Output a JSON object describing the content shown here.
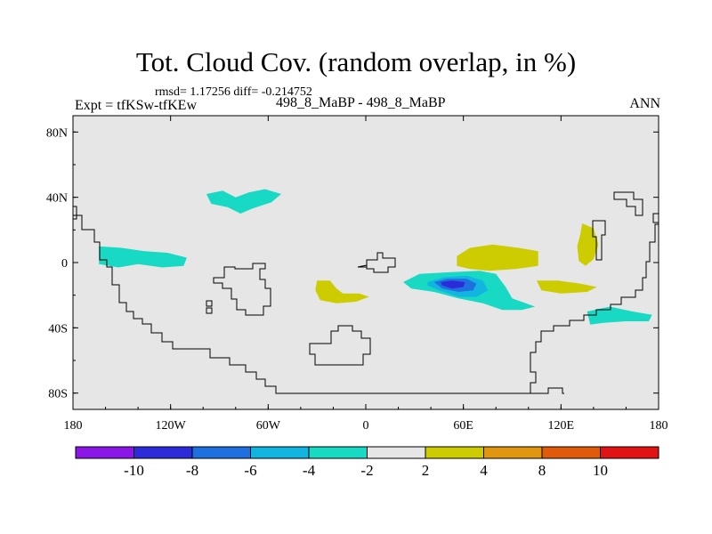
{
  "figure": {
    "title": "Tot. Cloud Cov. (random overlap, in %)",
    "stats": "rmsd= 1.17256 diff= -0.214752",
    "left_label": "Expt = tfKSw-tfKEw",
    "center_label": "498_8_MaBP - 498_8_MaBP",
    "right_label": "ANN"
  },
  "chart_data": {
    "type": "heatmap",
    "title": "Tot. Cloud Cov. (random overlap, in %)",
    "projection": "cylindrical equidistant",
    "x_range": [
      -180,
      180
    ],
    "y_range": [
      -90,
      90
    ],
    "x_ticks": [
      {
        "value": -180,
        "label": "180"
      },
      {
        "value": -120,
        "label": "120W"
      },
      {
        "value": -60,
        "label": "60W"
      },
      {
        "value": 0,
        "label": "0"
      },
      {
        "value": 60,
        "label": "60E"
      },
      {
        "value": 120,
        "label": "120E"
      },
      {
        "value": 180,
        "label": "180"
      }
    ],
    "y_ticks": [
      {
        "value": 80,
        "label": "80N"
      },
      {
        "value": 40,
        "label": "40N"
      },
      {
        "value": 0,
        "label": "0"
      },
      {
        "value": -40,
        "label": "40S"
      },
      {
        "value": -80,
        "label": "80S"
      }
    ],
    "background_color": "#e6e6e6",
    "colorbar": {
      "levels": [
        -10,
        -8,
        -6,
        -4,
        -2,
        2,
        4,
        8,
        10
      ],
      "level_labels": [
        "-10",
        "-8",
        "-6",
        "-4",
        "-2",
        "2",
        "4",
        "8",
        "10"
      ],
      "colors": [
        "#8a17e6",
        "#2b2bd9",
        "#1e6fe0",
        "#12b4e0",
        "#18d9c3",
        "#e6e6e6",
        "#cccc00",
        "#e0960f",
        "#e05a0c",
        "#e01414"
      ]
    },
    "regions": [
      {
        "name": "indian-ocean-negative-2to4",
        "level": -3,
        "polygon": [
          [
            23,
            -12
          ],
          [
            33,
            -7
          ],
          [
            50,
            -6
          ],
          [
            70,
            -5
          ],
          [
            80,
            -7
          ],
          [
            86,
            -15
          ],
          [
            90,
            -22
          ],
          [
            104,
            -27
          ],
          [
            96,
            -29
          ],
          [
            84,
            -29
          ],
          [
            72,
            -25
          ],
          [
            57,
            -22
          ],
          [
            42,
            -18
          ],
          [
            28,
            -16
          ]
        ]
      },
      {
        "name": "indian-ocean-negative-4to6",
        "level": -5,
        "polygon": [
          [
            38,
            -12
          ],
          [
            48,
            -9
          ],
          [
            62,
            -8
          ],
          [
            72,
            -11
          ],
          [
            75,
            -17
          ],
          [
            68,
            -21
          ],
          [
            57,
            -21
          ],
          [
            45,
            -17
          ],
          [
            38,
            -14
          ]
        ]
      },
      {
        "name": "indian-ocean-negative-6to8",
        "level": -7,
        "polygon": [
          [
            42,
            -12
          ],
          [
            50,
            -10
          ],
          [
            62,
            -10
          ],
          [
            68,
            -13
          ],
          [
            66,
            -17
          ],
          [
            57,
            -18
          ],
          [
            47,
            -16
          ]
        ]
      },
      {
        "name": "indian-ocean-negative-8to10",
        "level": -9,
        "polygon": [
          [
            46,
            -12
          ],
          [
            53,
            -11
          ],
          [
            61,
            -12
          ],
          [
            60,
            -15
          ],
          [
            53,
            -16
          ],
          [
            47,
            -14
          ]
        ]
      },
      {
        "name": "north-pacific-negative",
        "level": -3,
        "polygon": [
          [
            -98,
            42
          ],
          [
            -88,
            44
          ],
          [
            -80,
            40
          ],
          [
            -72,
            43
          ],
          [
            -62,
            45
          ],
          [
            -52,
            42
          ],
          [
            -58,
            37
          ],
          [
            -70,
            33
          ],
          [
            -77,
            30
          ],
          [
            -85,
            34
          ],
          [
            -95,
            36
          ]
        ]
      },
      {
        "name": "central-pacific-negative",
        "level": -3,
        "polygon": [
          [
            -164,
            10
          ],
          [
            -150,
            9
          ],
          [
            -136,
            7
          ],
          [
            -122,
            6
          ],
          [
            -110,
            3
          ],
          [
            -112,
            -2
          ],
          [
            -125,
            -3
          ],
          [
            -140,
            -1
          ],
          [
            -152,
            -3
          ],
          [
            -164,
            -1
          ]
        ]
      },
      {
        "name": "south-pacific-negative",
        "level": -3,
        "polygon": [
          [
            136,
            -30
          ],
          [
            150,
            -27
          ],
          [
            164,
            -30
          ],
          [
            176,
            -32
          ],
          [
            174,
            -36
          ],
          [
            160,
            -36
          ],
          [
            146,
            -37
          ],
          [
            138,
            -38
          ]
        ]
      },
      {
        "name": "arabian-positive",
        "level": 3,
        "polygon": [
          [
            56,
            -2
          ],
          [
            64,
            -4
          ],
          [
            76,
            -5
          ],
          [
            92,
            -4
          ],
          [
            106,
            -2
          ],
          [
            106,
            7
          ],
          [
            94,
            9
          ],
          [
            78,
            11
          ],
          [
            64,
            9
          ],
          [
            56,
            4
          ]
        ]
      },
      {
        "name": "south-atlantic-positive",
        "level": 3,
        "polygon": [
          [
            -30,
            -11
          ],
          [
            -22,
            -11
          ],
          [
            -18,
            -16
          ],
          [
            -14,
            -19
          ],
          [
            -4,
            -19
          ],
          [
            2,
            -21
          ],
          [
            -6,
            -24
          ],
          [
            -18,
            -25
          ],
          [
            -28,
            -23
          ],
          [
            -31,
            -17
          ]
        ]
      },
      {
        "name": "australia-positive",
        "level": 3,
        "polygon": [
          [
            105,
            -11
          ],
          [
            118,
            -11
          ],
          [
            132,
            -13
          ],
          [
            142,
            -15
          ],
          [
            136,
            -18
          ],
          [
            120,
            -19
          ],
          [
            108,
            -17
          ]
        ]
      },
      {
        "name": "west-pacific-positive",
        "level": 3,
        "polygon": [
          [
            133,
            24
          ],
          [
            140,
            21
          ],
          [
            143,
            11
          ],
          [
            140,
            2
          ],
          [
            135,
            -2
          ],
          [
            131,
            1
          ],
          [
            130,
            10
          ],
          [
            132,
            18
          ]
        ]
      }
    ]
  }
}
